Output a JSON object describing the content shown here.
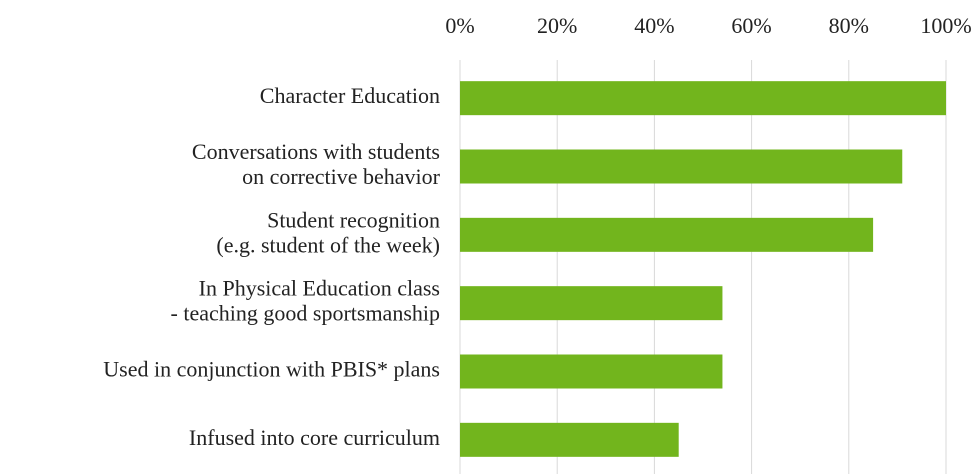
{
  "chart_data": {
    "type": "barh",
    "categories": [
      [
        "Character Education"
      ],
      [
        "Conversations with students",
        "on corrective behavior"
      ],
      [
        "Student recognition",
        "(e.g. student of the week)"
      ],
      [
        "In Physical Education class",
        "- teaching good sportsmanship"
      ],
      [
        "Used in conjunction with PBIS* plans"
      ],
      [
        "Infused into core curriculum"
      ]
    ],
    "values": [
      100,
      91,
      85,
      54,
      54,
      45
    ],
    "color": "#72b51d",
    "xlim": [
      0,
      100
    ],
    "xticks": [
      {
        "value": 0,
        "label": "0%"
      },
      {
        "value": 20,
        "label": "20%"
      },
      {
        "value": 40,
        "label": "40%"
      },
      {
        "value": 60,
        "label": "60%"
      },
      {
        "value": 80,
        "label": "80%"
      },
      {
        "value": 100,
        "label": "100%"
      }
    ],
    "grid": true
  }
}
